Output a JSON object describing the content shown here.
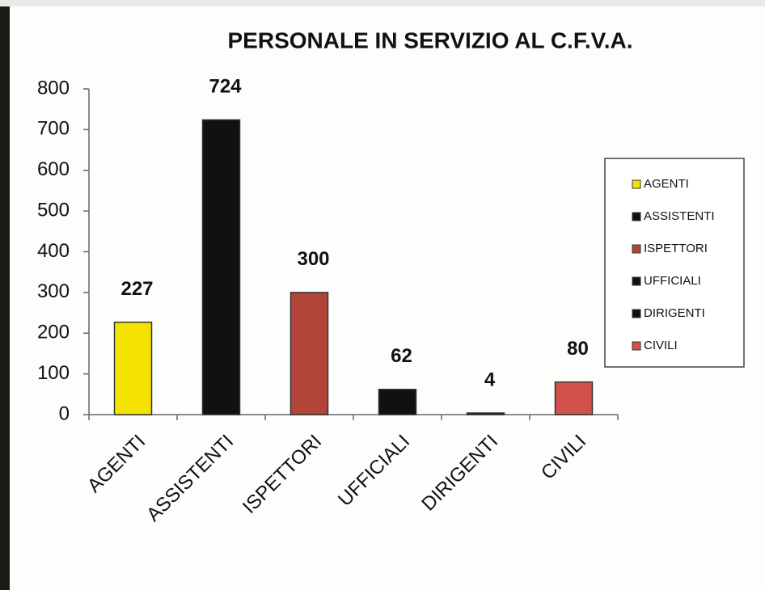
{
  "chart_data": {
    "type": "bar",
    "title": "PERSONALE IN SERVIZIO AL C.F.V.A.",
    "categories": [
      "AGENTI",
      "ASSISTENTI",
      "ISPETTORI",
      "UFFICIALI",
      "DIRIGENTI",
      "CIVILI"
    ],
    "values": [
      227,
      724,
      300,
      62,
      4,
      80
    ],
    "colors": [
      "#f4e300",
      "#111111",
      "#b3443a",
      "#111111",
      "#111111",
      "#d2514a"
    ],
    "ylim": [
      0,
      800
    ],
    "yticks": [
      0,
      100,
      200,
      300,
      400,
      500,
      600,
      700,
      800
    ],
    "grid": false,
    "legend": "right"
  }
}
